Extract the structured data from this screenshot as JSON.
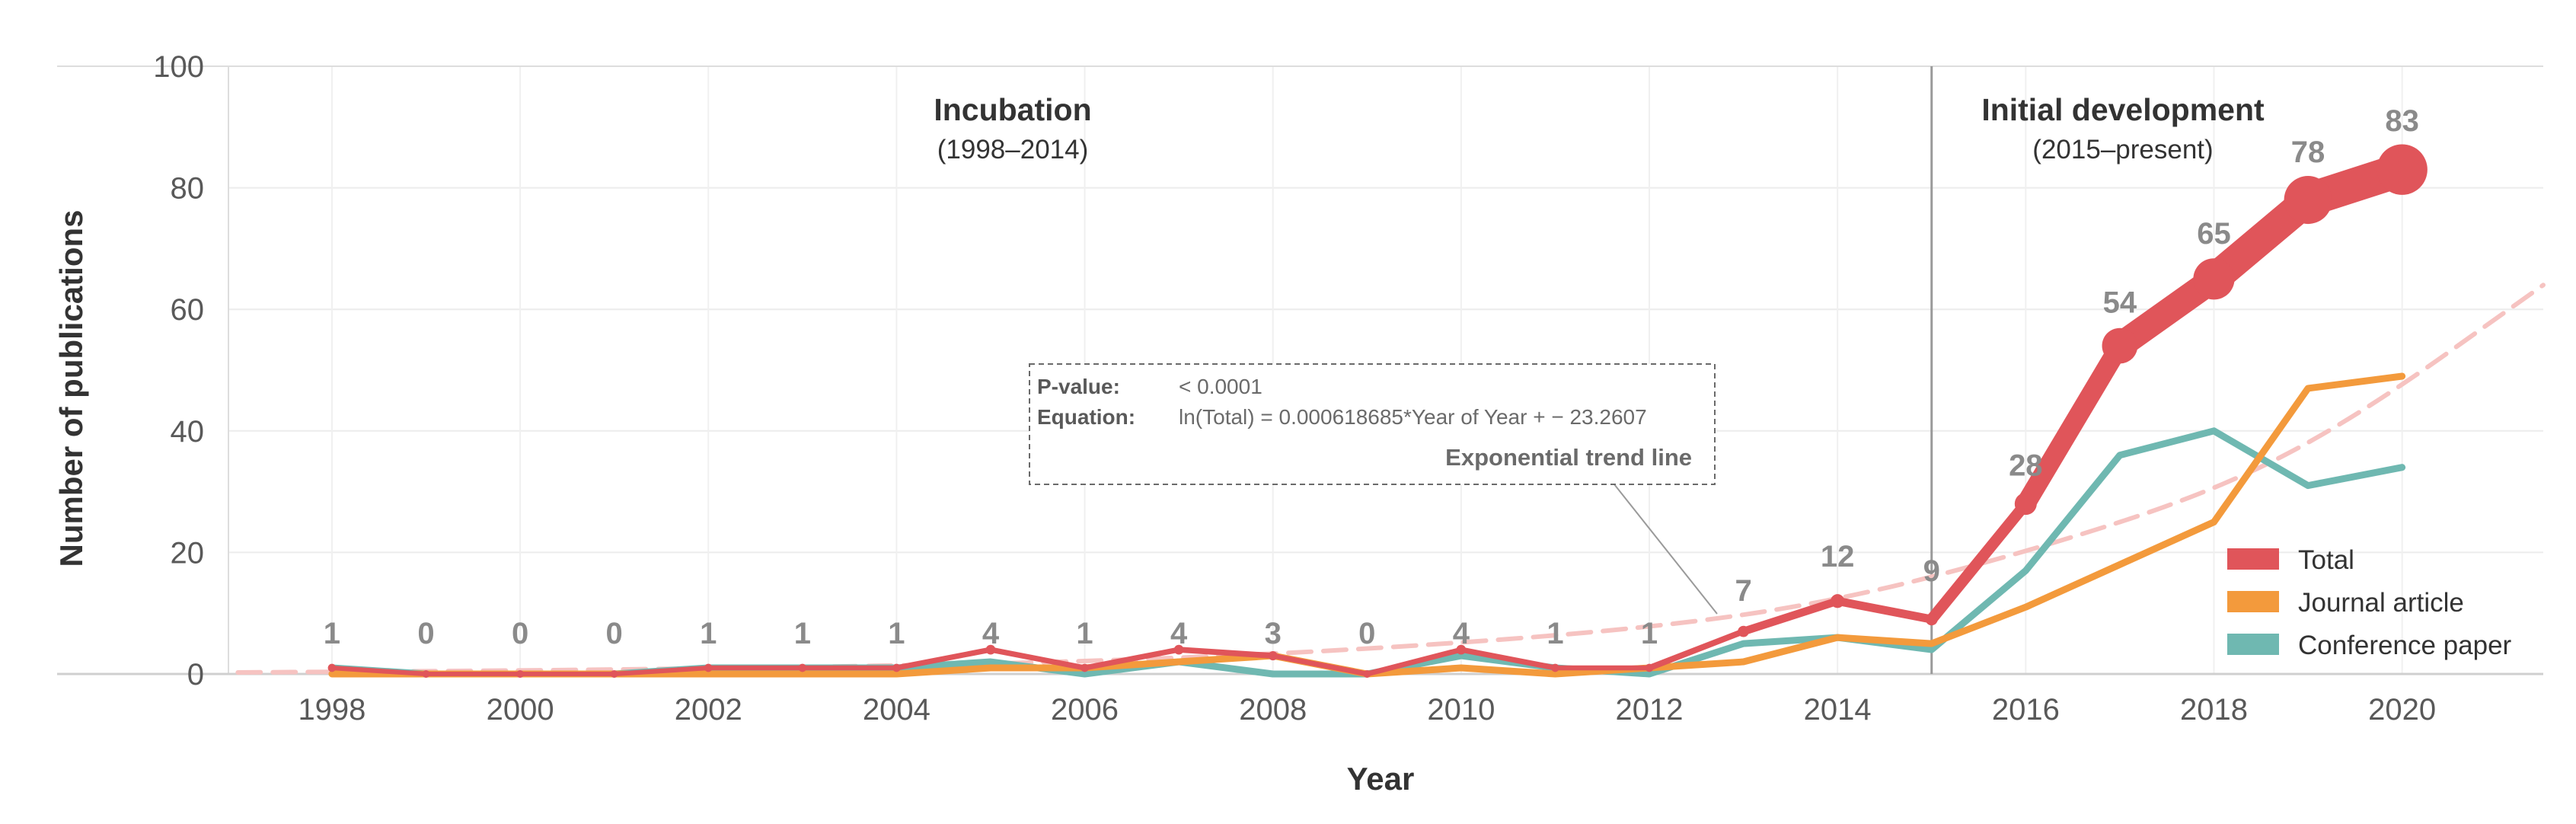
{
  "chart_data": {
    "type": "line",
    "title": "",
    "xlabel": "Year",
    "ylabel": "Number of publications",
    "xlim": [
      1996.9,
      2021.5
    ],
    "ylim": [
      0,
      100
    ],
    "x_ticks": [
      1998,
      2000,
      2002,
      2004,
      2006,
      2008,
      2010,
      2012,
      2014,
      2016,
      2018,
      2020
    ],
    "y_ticks": [
      0,
      20,
      40,
      60,
      80,
      100
    ],
    "x": [
      1998,
      1999,
      2000,
      2001,
      2002,
      2003,
      2004,
      2005,
      2006,
      2007,
      2008,
      2009,
      2010,
      2011,
      2012,
      2013,
      2014,
      2015,
      2016,
      2017,
      2018,
      2019,
      2020
    ],
    "series": [
      {
        "name": "Total",
        "color": "#e0555a",
        "values": [
          1,
          0,
          0,
          0,
          1,
          1,
          1,
          4,
          1,
          4,
          3,
          0,
          4,
          1,
          1,
          7,
          12,
          9,
          28,
          54,
          65,
          78,
          83
        ]
      },
      {
        "name": "Journal article",
        "color": "#f39a3c",
        "values": [
          0,
          0,
          0,
          0,
          0,
          0,
          0,
          1,
          1,
          2,
          3,
          0,
          1,
          0,
          1,
          2,
          6,
          5,
          11,
          18,
          25,
          47,
          49
        ]
      },
      {
        "name": "Conference paper",
        "color": "#6fb8b1",
        "values": [
          1,
          0,
          0,
          0,
          1,
          1,
          1,
          2,
          0,
          2,
          0,
          0,
          3,
          1,
          0,
          5,
          6,
          4,
          17,
          36,
          40,
          31,
          34
        ]
      }
    ],
    "data_labels": [
      "1",
      "0",
      "0",
      "0",
      "1",
      "1",
      "1",
      "4",
      "1",
      "4",
      "3",
      "0",
      "4",
      "1",
      "1",
      "7",
      "12",
      "9",
      "28",
      "54",
      "65",
      "78",
      "83"
    ],
    "trend_line": {
      "name": "Exponential trend line",
      "color": "#f6c3c1",
      "x_range": [
        1997,
        2021.5
      ],
      "points": [
        [
          1997,
          0.25
        ],
        [
          2000,
          0.55
        ],
        [
          2003,
          1.1
        ],
        [
          2006,
          2.0
        ],
        [
          2009,
          4.0
        ],
        [
          2012,
          7.5
        ],
        [
          2014,
          12
        ],
        [
          2016,
          20
        ],
        [
          2018,
          30
        ],
        [
          2019.5,
          42
        ],
        [
          2021.5,
          64
        ]
      ]
    },
    "divider_year": 2015,
    "periods": [
      {
        "title": "Incubation",
        "subtitle": "(1998–2014)"
      },
      {
        "title": "Initial development",
        "subtitle": "(2015–present)"
      }
    ],
    "annotation": {
      "pvalue_key": "P-value:",
      "pvalue": "< 0.0001",
      "equation_key": "Equation:",
      "equation": "ln(Total) = 0.000618685*Year of Year + − 23.2607",
      "title": "Exponential trend line"
    },
    "legend": {
      "placement": "bottom-right",
      "entries": [
        {
          "label": "Total",
          "color": "#e0555a"
        },
        {
          "label": "Journal article",
          "color": "#f39a3c"
        },
        {
          "label": "Conference paper",
          "color": "#6fb8b1"
        }
      ]
    },
    "grid": true
  }
}
